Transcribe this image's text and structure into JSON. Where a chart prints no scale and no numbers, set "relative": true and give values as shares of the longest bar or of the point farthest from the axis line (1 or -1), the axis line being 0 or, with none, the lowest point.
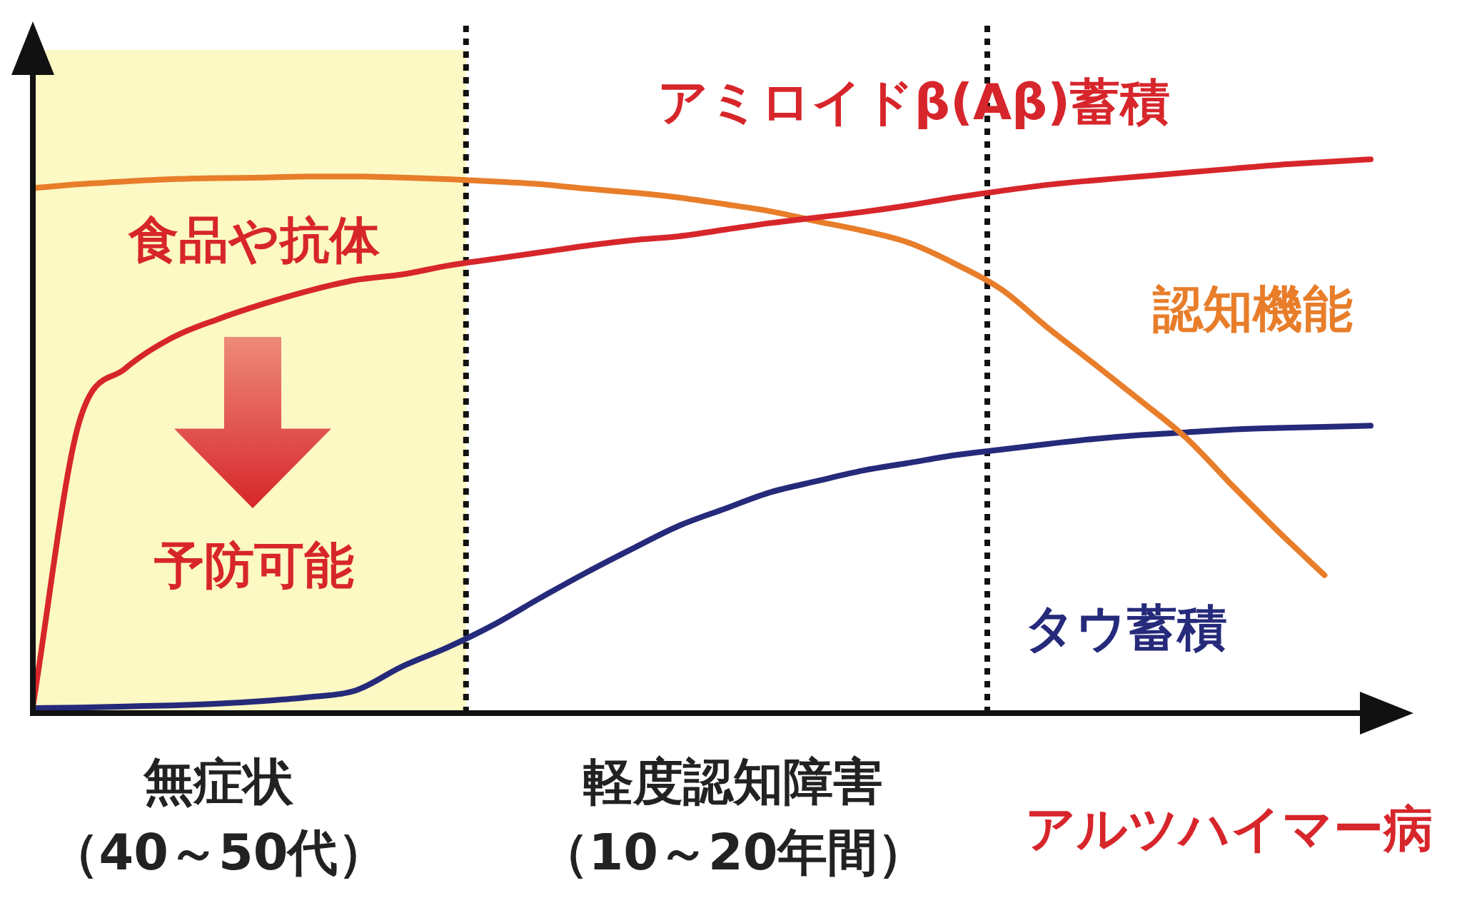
{
  "chart_data": {
    "type": "line",
    "relative": true,
    "legend": false,
    "marker": "none",
    "line_style": "solid",
    "categories": [
      null,
      null,
      null,
      null,
      null,
      null,
      null,
      null,
      null,
      null,
      null,
      null,
      null,
      null,
      null,
      null,
      null,
      null,
      null,
      null,
      null,
      null,
      null,
      null,
      null,
      null,
      null,
      null,
      null,
      null
    ],
    "series": [
      {
        "name": "アミロイドβ(Aβ)蓄積",
        "color": "#d7262b",
        "values": [
          0.012,
          0.524,
          0.622,
          0.677,
          0.711,
          0.739,
          0.763,
          0.782,
          0.792,
          0.808,
          0.82,
          0.832,
          0.844,
          0.854,
          0.861,
          0.873,
          0.885,
          0.895,
          0.905,
          0.917,
          0.931,
          0.943,
          0.954,
          0.962,
          0.969,
          0.976,
          0.983,
          0.99,
          0.995,
          1
        ]
      },
      {
        "name": "認知機能",
        "color": "#e87d2a",
        "values": [
          0.948,
          0.955,
          0.96,
          0.964,
          0.966,
          0.967,
          0.969,
          0.969,
          0.967,
          0.964,
          0.96,
          0.955,
          0.947,
          0.94,
          0.931,
          0.919,
          0.906,
          0.888,
          0.871,
          0.849,
          0.811,
          0.765,
          0.696,
          0.631,
          0.565,
          0.497,
          0.411,
          0.328,
          0.249,
          null
        ]
      },
      {
        "name": "タウ蓄積",
        "color": "#262a7a",
        "values": [
          0.009,
          0.01,
          0.012,
          0.014,
          0.017,
          0.022,
          0.029,
          0.041,
          0.084,
          0.119,
          0.16,
          0.208,
          0.254,
          0.297,
          0.338,
          0.369,
          0.399,
          0.419,
          0.438,
          0.452,
          0.466,
          0.476,
          0.486,
          0.495,
          0.502,
          0.507,
          0.512,
          0.515,
          0.517,
          0.519
        ]
      }
    ],
    "annotations": [
      "食品や抗体",
      "予防可能",
      "無症状",
      "（40～50代）",
      "軽度認知障害",
      "（10～20年間）",
      "アルツハイマー病"
    ]
  }
}
